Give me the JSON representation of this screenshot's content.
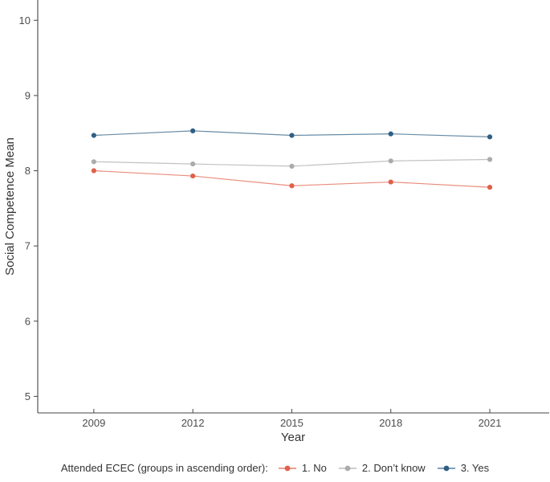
{
  "chart_data": {
    "type": "line",
    "title": "",
    "xlabel": "Year",
    "ylabel": "Social Competence Mean",
    "x": [
      2009,
      2012,
      2015,
      2018,
      2021
    ],
    "x_tick_labels": [
      "2009",
      "2012",
      "2015",
      "2018",
      "2021"
    ],
    "y_ticks": [
      5,
      6,
      7,
      8,
      9,
      10
    ],
    "y_tick_labels": [
      "5",
      "6",
      "7",
      "8",
      "9",
      "10"
    ],
    "xlim": [
      2007.3,
      2022.8
    ],
    "ylim": [
      4.78,
      10.27
    ],
    "grid": false,
    "legend_position": "bottom",
    "legend_title": "Attended ECEC (groups in ascending order):",
    "series": [
      {
        "name": "1. No",
        "color": "#E0604A",
        "values": [
          8.0,
          7.93,
          7.8,
          7.85,
          7.78
        ]
      },
      {
        "name": "2. Don’t know",
        "color": "#ABABAB",
        "values": [
          8.12,
          8.09,
          8.06,
          8.13,
          8.15
        ]
      },
      {
        "name": "3. Yes",
        "color": "#2E5F85",
        "values": [
          8.47,
          8.53,
          8.47,
          8.49,
          8.45
        ]
      }
    ]
  },
  "colors": {
    "background": "#FFFFFF",
    "axis_line": "#464646",
    "tick_text": "#4D4D4D",
    "title_text": "#333333"
  }
}
